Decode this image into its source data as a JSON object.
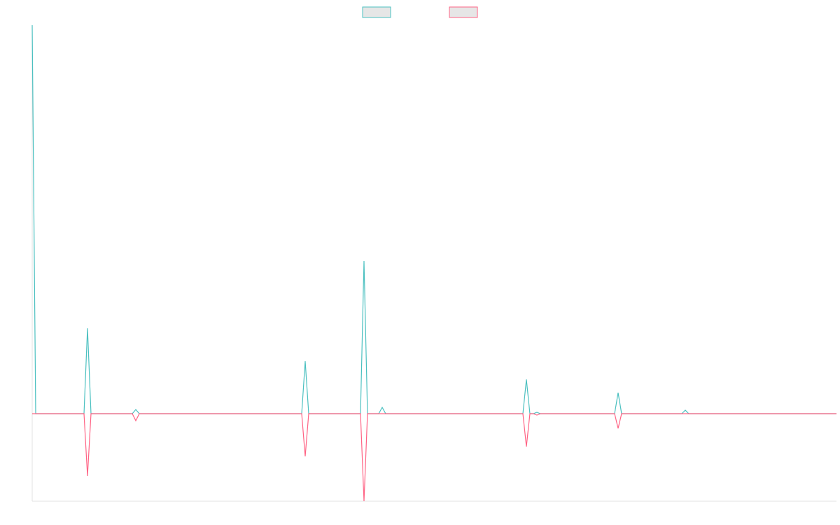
{
  "chart_data": {
    "type": "line",
    "x": [
      0,
      5,
      74,
      79,
      84,
      143,
      148,
      153,
      385,
      390,
      395,
      469,
      474,
      479,
      495,
      500,
      505,
      701,
      706,
      711,
      716,
      721,
      726,
      832,
      837,
      842,
      928,
      933,
      938,
      1149
    ],
    "xlim": [
      0,
      1149
    ],
    "ylim": [
      -125,
      555
    ],
    "series": [
      {
        "color": "#4bc0c0",
        "values": [
          555,
          0,
          0,
          122,
          0,
          0,
          6,
          0,
          0,
          75,
          0,
          0,
          218,
          0,
          0,
          9,
          0,
          0,
          49,
          0,
          0,
          2,
          0,
          0,
          30,
          0,
          0,
          5,
          0,
          0
        ]
      },
      {
        "color": "#ff6384",
        "values": [
          0,
          0,
          0,
          -89,
          0,
          0,
          -10,
          0,
          0,
          -61,
          0,
          0,
          -125,
          0,
          0,
          0,
          0,
          0,
          -47,
          0,
          0,
          -2,
          0,
          0,
          -21,
          0,
          0,
          0,
          0,
          0
        ]
      }
    ]
  }
}
